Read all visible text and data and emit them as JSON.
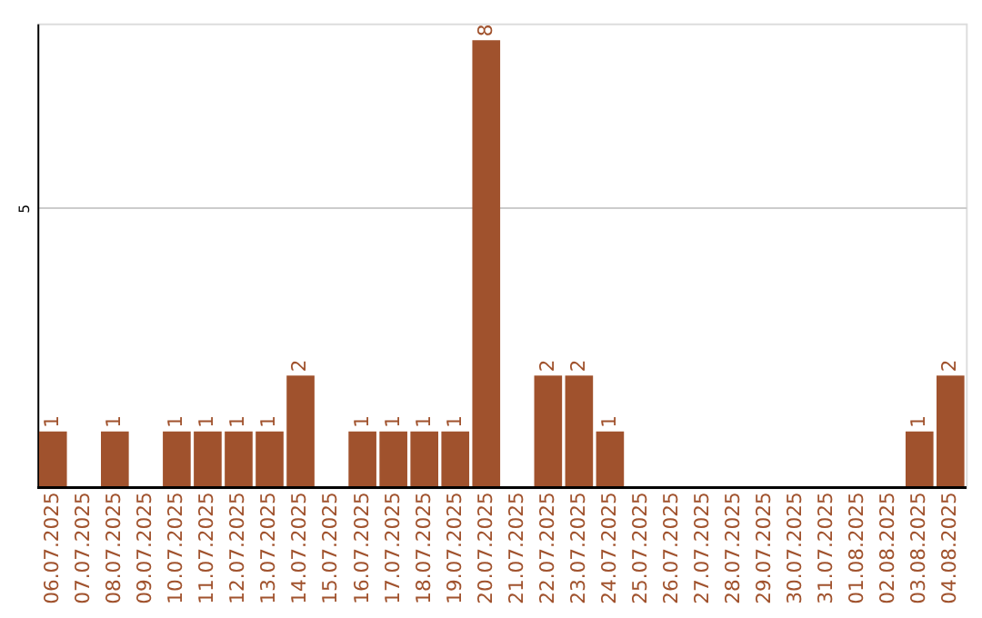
{
  "chart_data": {
    "type": "bar",
    "categories": [
      "06.07.2025",
      "07.07.2025",
      "08.07.2025",
      "09.07.2025",
      "10.07.2025",
      "11.07.2025",
      "12.07.2025",
      "13.07.2025",
      "14.07.2025",
      "15.07.2025",
      "16.07.2025",
      "17.07.2025",
      "18.07.2025",
      "19.07.2025",
      "20.07.2025",
      "21.07.2025",
      "22.07.2025",
      "23.07.2025",
      "24.07.2025",
      "25.07.2025",
      "26.07.2025",
      "27.07.2025",
      "28.07.2025",
      "29.07.2025",
      "30.07.2025",
      "31.07.2025",
      "01.08.2025",
      "02.08.2025",
      "03.08.2025",
      "04.08.2025"
    ],
    "values": [
      1,
      null,
      1,
      null,
      1,
      1,
      1,
      1,
      2,
      null,
      1,
      1,
      1,
      1,
      8,
      null,
      2,
      2,
      1,
      null,
      null,
      null,
      null,
      null,
      null,
      null,
      null,
      null,
      1,
      2
    ],
    "color": "#a0522d",
    "ylim": [
      0,
      8.3
    ],
    "yticks": [
      5
    ],
    "grid": "y",
    "data_labels": true
  }
}
